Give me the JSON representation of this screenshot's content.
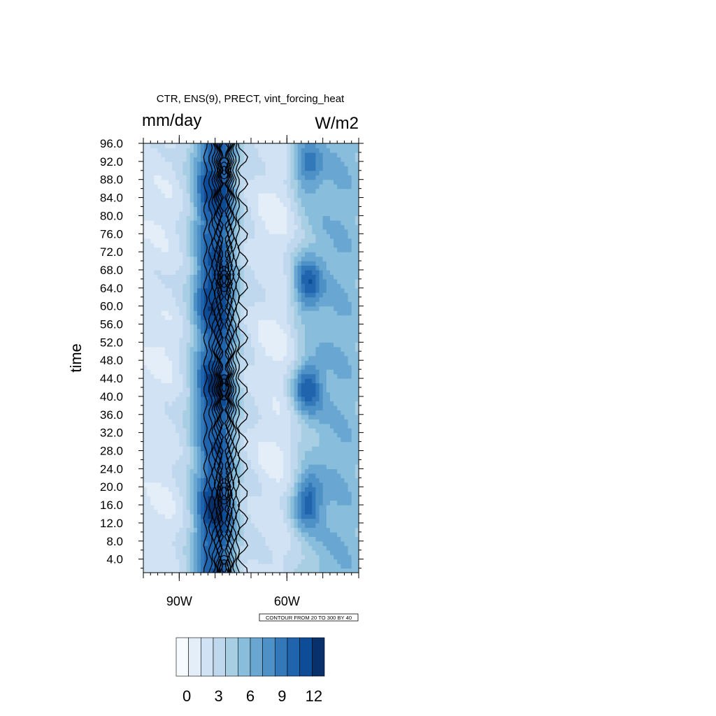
{
  "chart_data": {
    "type": "heatmap",
    "title": "CTR, ENS(9), PRECT, vint_forcing_heat",
    "left_label": "mm/day",
    "right_label": "W/m2",
    "ylabel": "time",
    "xlabel": "",
    "y_ticks": [
      "4.0",
      "8.0",
      "12.0",
      "16.0",
      "20.0",
      "24.0",
      "28.0",
      "32.0",
      "36.0",
      "40.0",
      "44.0",
      "48.0",
      "52.0",
      "56.0",
      "60.0",
      "64.0",
      "68.0",
      "72.0",
      "76.0",
      "80.0",
      "84.0",
      "88.0",
      "92.0",
      "96.0"
    ],
    "y_tick_values": [
      4,
      8,
      12,
      16,
      20,
      24,
      28,
      32,
      36,
      40,
      44,
      48,
      52,
      56,
      60,
      64,
      68,
      72,
      76,
      80,
      84,
      88,
      92,
      96
    ],
    "ylim": [
      1,
      96
    ],
    "x_tick_labels": [
      "90W",
      "60W"
    ],
    "x_tick_values": [
      -90,
      -60
    ],
    "xlim": [
      -100,
      -40
    ],
    "contour_note": "CONTOUR FROM 20 TO 300 BY 40",
    "colorbar": {
      "labels": [
        "0",
        "3",
        "6",
        "9",
        "12"
      ],
      "label_values": [
        0,
        3,
        6,
        9,
        12
      ],
      "min": -1,
      "max": 13,
      "colors": [
        "#f7fbff",
        "#e3eef9",
        "#d0e2f3",
        "#c0d8ed",
        "#a8cee4",
        "#88bedc",
        "#69a7d2",
        "#4d91c6",
        "#3379b9",
        "#1f64ad",
        "#0d4c97",
        "#08306b"
      ]
    },
    "shading_model": {
      "base_by_longitude": [
        [
          -100,
          2.0
        ],
        [
          -92,
          2.2
        ],
        [
          -88,
          3.5
        ],
        [
          -85,
          6.5
        ],
        [
          -82,
          10.0
        ],
        [
          -78,
          10.5
        ],
        [
          -75,
          6.0
        ],
        [
          -72,
          3.0
        ],
        [
          -69,
          2.6
        ],
        [
          -62,
          1.8
        ],
        [
          -55,
          4.2
        ],
        [
          -50,
          5.5
        ],
        [
          -45,
          6.0
        ],
        [
          -40,
          5.2
        ]
      ],
      "maxima": [
        {
          "lon": -54,
          "time": 17,
          "value": 10.5
        },
        {
          "lon": -54,
          "time": 42,
          "value": 10.5
        },
        {
          "lon": -54,
          "time": 65,
          "value": 10.5
        },
        {
          "lon": -54,
          "time": 91,
          "value": 9.0
        },
        {
          "lon": -80,
          "time": 15,
          "value": 12.0
        },
        {
          "lon": -80,
          "time": 42,
          "value": 12.0
        },
        {
          "lon": -80,
          "time": 62,
          "value": 12.0
        },
        {
          "lon": -80,
          "time": 85,
          "value": 11.5
        }
      ],
      "light_patches": [
        {
          "lon": -64,
          "time": 80,
          "value": 0.8
        },
        {
          "lon": -64,
          "time": 52,
          "value": 0.8
        },
        {
          "lon": -64,
          "time": 28,
          "value": 1.0
        },
        {
          "lon": -95,
          "time": 50,
          "value": 1.0
        },
        {
          "lon": -95,
          "time": 15,
          "value": 1.2
        },
        {
          "lon": -95,
          "time": 80,
          "value": 1.2
        }
      ]
    },
    "contour_lines": {
      "levels": [
        20,
        60,
        100,
        140,
        180,
        220,
        260,
        300
      ],
      "band_center_lon": -77.5,
      "band_half_widths": [
        5.2,
        3.8,
        2.9,
        2.3,
        1.8,
        1.4,
        1.0,
        0.7
      ],
      "closed_cells": [
        {
          "lon": -77.5,
          "time": 2,
          "value": 300
        },
        {
          "lon": -77.5,
          "time": 19,
          "value": 300
        },
        {
          "lon": -77.5,
          "time": 42,
          "value": 260
        },
        {
          "lon": -77.5,
          "time": 66,
          "value": 260
        },
        {
          "lon": -77.5,
          "time": 90,
          "value": 260
        }
      ]
    }
  }
}
